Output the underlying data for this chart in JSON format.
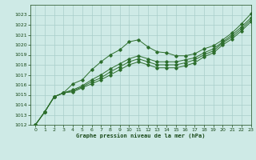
{
  "bg_color": "#ceeae6",
  "grid_color": "#a8ceca",
  "line_color": "#2d6e2d",
  "text_color": "#1a4a1a",
  "xlabel": "Graphe pression niveau de la mer (hPa)",
  "ylim": [
    1012,
    1024
  ],
  "xlim": [
    -0.5,
    23
  ],
  "yticks": [
    1012,
    1013,
    1014,
    1015,
    1016,
    1017,
    1018,
    1019,
    1020,
    1021,
    1022,
    1023
  ],
  "xticks": [
    0,
    1,
    2,
    3,
    4,
    5,
    6,
    7,
    8,
    9,
    10,
    11,
    12,
    13,
    14,
    15,
    16,
    17,
    18,
    19,
    20,
    21,
    22,
    23
  ],
  "lines": [
    [
      1012.0,
      1013.3,
      1014.8,
      1015.2,
      1016.1,
      1016.5,
      1017.5,
      1018.3,
      1019.0,
      1019.5,
      1020.3,
      1020.5,
      1019.8,
      1019.3,
      1019.2,
      1018.9,
      1018.9,
      1019.1,
      1019.6,
      1019.9,
      1020.5,
      1021.2,
      1022.1,
      1023.1
    ],
    [
      1012.0,
      1013.3,
      1014.8,
      1015.2,
      1015.5,
      1015.9,
      1016.5,
      1017.0,
      1017.6,
      1018.1,
      1018.6,
      1018.9,
      1018.6,
      1018.3,
      1018.3,
      1018.3,
      1018.5,
      1018.7,
      1019.2,
      1019.6,
      1020.3,
      1021.0,
      1021.8,
      1022.7
    ],
    [
      1012.0,
      1013.3,
      1014.8,
      1015.2,
      1015.4,
      1015.8,
      1016.3,
      1016.7,
      1017.3,
      1017.8,
      1018.3,
      1018.6,
      1018.3,
      1018.0,
      1018.0,
      1018.0,
      1018.2,
      1018.5,
      1019.0,
      1019.4,
      1020.2,
      1020.8,
      1021.6,
      1022.5
    ],
    [
      1012.0,
      1013.3,
      1014.8,
      1015.2,
      1015.3,
      1015.7,
      1016.1,
      1016.5,
      1017.0,
      1017.5,
      1018.0,
      1018.3,
      1018.0,
      1017.7,
      1017.7,
      1017.7,
      1017.9,
      1018.2,
      1018.8,
      1019.2,
      1020.0,
      1020.6,
      1021.4,
      1022.3
    ]
  ]
}
